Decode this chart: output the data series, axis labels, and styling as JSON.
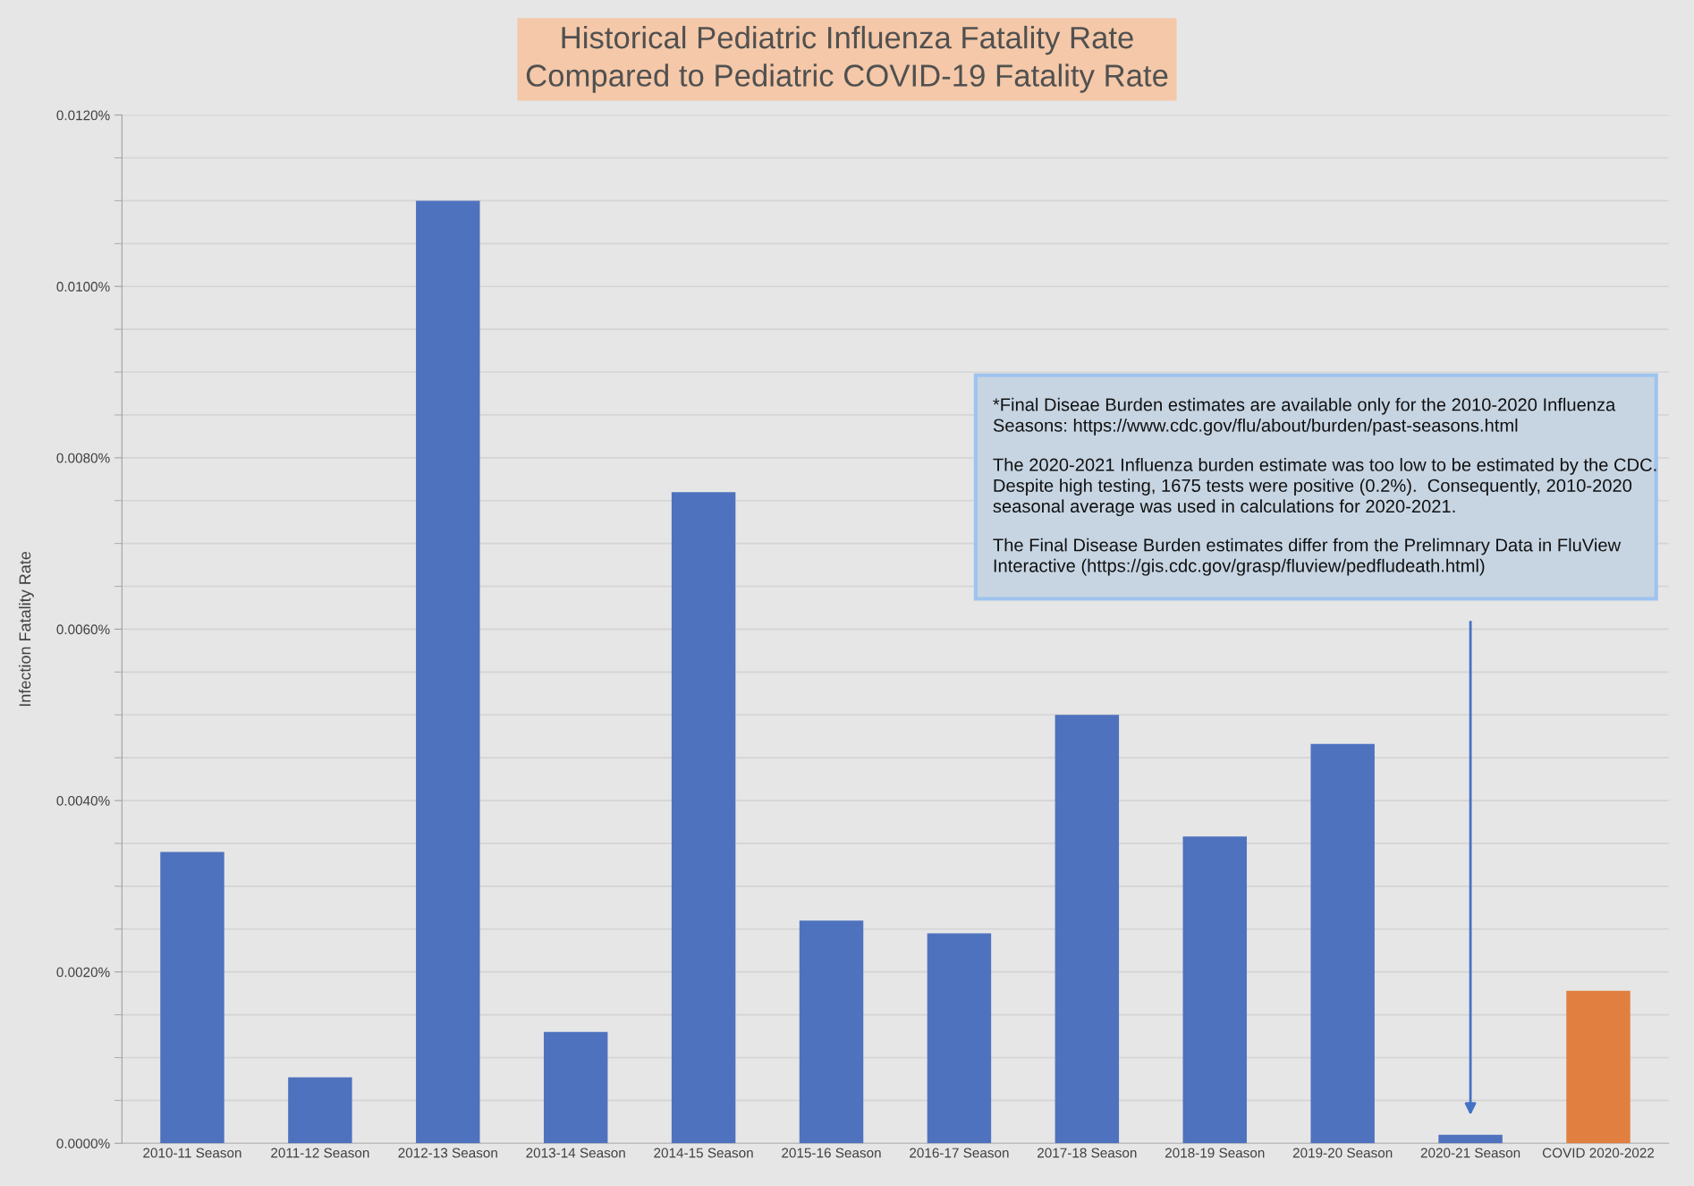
{
  "chart_data": {
    "type": "bar",
    "title": "Historical Pediatric Influenza Fatality Rate\nCompared to Pediatric COVID-19 Fatality Rate",
    "ylabel": "Infection Fatality Rate",
    "categories": [
      "2010-11 Season",
      "2011-12 Season",
      "2012-13 Season",
      "2013-14 Season",
      "2014-15 Season",
      "2015-16 Season",
      "2016-17 Season",
      "2017-18 Season",
      "2018-19 Season",
      "2019-20 Season",
      "2020-21 Season",
      "COVID 2020-2022"
    ],
    "values": [
      0.0034,
      0.00077,
      0.011,
      0.0013,
      0.0076,
      0.0026,
      0.00245,
      0.005,
      0.00358,
      0.00466,
      0.0001,
      0.00178
    ],
    "colors": [
      "#4f72be",
      "#4f72be",
      "#4f72be",
      "#4f72be",
      "#4f72be",
      "#4f72be",
      "#4f72be",
      "#4f72be",
      "#4f72be",
      "#4f72be",
      "#4f72be",
      "#e07f3f"
    ],
    "ylim": [
      0,
      0.012
    ],
    "yticks": [
      {
        "value": 0,
        "label": "0.0000%"
      },
      {
        "value": 0.002,
        "label": "0.0020%"
      },
      {
        "value": 0.004,
        "label": "0.0040%"
      },
      {
        "value": 0.006,
        "label": "0.0060%"
      },
      {
        "value": 0.008,
        "label": "0.0080%"
      },
      {
        "value": 0.01,
        "label": "0.0100%"
      },
      {
        "value": 0.012,
        "label": "0.0120%"
      }
    ],
    "grid": "y",
    "annotations": [
      "*Final Diseae Burden estimates are available only for the 2010-2020 Influenza\nSeasons: https://www.cdc.gov/flu/about/burden/past-seasons.html",
      "The 2020-2021 Influenza burden estimate was too low to be estimated by the CDC.\nDespite high testing, 1675 tests were positive (0.2%).  Consequently, 2010-2020\nseasonal average was used in calculations for 2020-2021.",
      "The Final Disease Burden estimates differ from the Prelimnary Data in FluView\nInteractive (https://gis.cdc.gov/grasp/fluview/pedfludeath.html)"
    ]
  }
}
